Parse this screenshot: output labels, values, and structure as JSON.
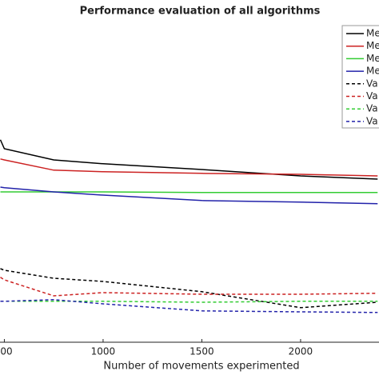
{
  "chart_data": {
    "type": "line",
    "title": "Performance evaluation of all algorithms",
    "x_label": "Number of movements experimented",
    "x": [
      480,
      500,
      750,
      1000,
      1500,
      2000,
      2390
    ],
    "xlim": [
      478,
      2397
    ],
    "xticks": [
      {
        "value": 500,
        "label": "00"
      },
      1000,
      1500,
      2000
    ],
    "ylim": [
      0,
      1
    ],
    "series": [
      {
        "name": "Me",
        "color": "#000000",
        "dash": false,
        "values": [
          0.633,
          0.605,
          0.57,
          0.558,
          0.54,
          0.52,
          0.51
        ]
      },
      {
        "name": "Me",
        "color": "#cc2222",
        "dash": false,
        "values": [
          0.573,
          0.57,
          0.538,
          0.533,
          0.528,
          0.525,
          0.52
        ]
      },
      {
        "name": "Me",
        "color": "#33cc33",
        "dash": false,
        "values": [
          0.47,
          0.47,
          0.47,
          0.47,
          0.468,
          0.468,
          0.468
        ]
      },
      {
        "name": "Me",
        "color": "#2222aa",
        "dash": false,
        "values": [
          0.485,
          0.483,
          0.47,
          0.46,
          0.443,
          0.438,
          0.433
        ]
      },
      {
        "name": "Va",
        "color": "#000000",
        "dash": true,
        "values": [
          0.23,
          0.225,
          0.2,
          0.19,
          0.158,
          0.108,
          0.125
        ]
      },
      {
        "name": "Va",
        "color": "#cc2222",
        "dash": true,
        "values": [
          0.203,
          0.195,
          0.145,
          0.155,
          0.15,
          0.15,
          0.153
        ]
      },
      {
        "name": "Va",
        "color": "#33cc33",
        "dash": true,
        "values": [
          0.128,
          0.128,
          0.128,
          0.128,
          0.125,
          0.128,
          0.128
        ]
      },
      {
        "name": "Va",
        "color": "#2222aa",
        "dash": true,
        "values": [
          0.128,
          0.128,
          0.133,
          0.12,
          0.098,
          0.095,
          0.093
        ]
      }
    ]
  }
}
